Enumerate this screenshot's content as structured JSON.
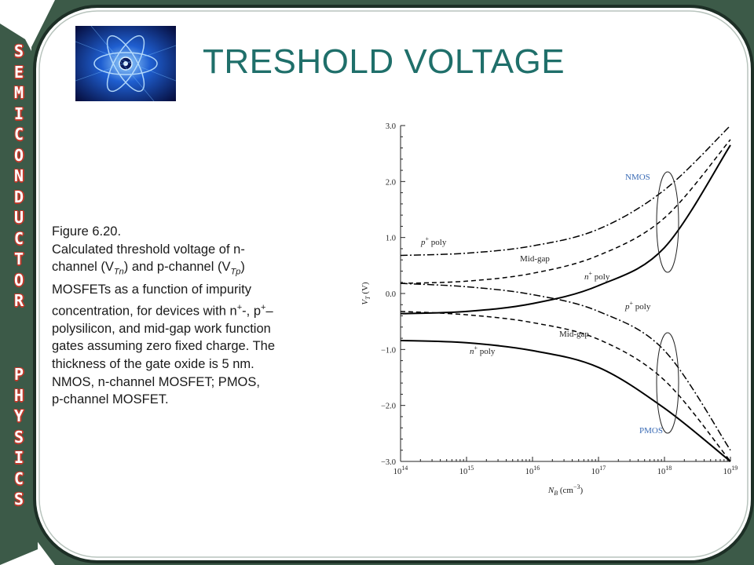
{
  "sidebar": {
    "letters_top": [
      "S",
      "E",
      "M",
      "I",
      "C",
      "O",
      "N",
      "D",
      "U",
      "C",
      "T",
      "O",
      "R"
    ],
    "letters_bottom": [
      "P",
      "H",
      "Y",
      "S",
      "I",
      "C",
      "S"
    ]
  },
  "slide": {
    "title": "TRESHOLD VOLTAGE",
    "logo_icon": "atom-logo-icon"
  },
  "caption": {
    "heading": "Figure 6.20.",
    "lines": [
      "Calculated threshold voltage of n-",
      "channel (V",
      "Tn",
      ") and p-channel (V",
      "Tp",
      ")",
      "MOSFETs as a function of impurity",
      "concentration, for devices with n",
      "+",
      "-, p",
      "+",
      "–",
      "polysilicon, and mid-gap work function",
      "gates assuming zero fixed charge. The",
      "thickness of the gate oxide is 5 nm.",
      "NMOS, n-channel MOSFET; PMOS,",
      "p-channel MOSFET."
    ]
  },
  "colors": {
    "title": "#1f6f6a",
    "frame_dark": "#2a4a3a",
    "sidebar_green": "#3c5a48",
    "sidebar_letter_outline": "#c0392b",
    "group_label": "#3a6bb5"
  },
  "chart_data": {
    "type": "line",
    "xscale": "log",
    "xlim": [
      100000000000000.0,
      1e+19
    ],
    "ylim": [
      -3.0,
      3.0
    ],
    "xticks": [
      "10^14",
      "10^15",
      "10^16",
      "10^17",
      "10^18",
      "10^19"
    ],
    "yticks": [
      "3.0",
      "2.0",
      "1.0",
      "0.0",
      "−1.0",
      "−2.0",
      "−3.0"
    ],
    "xlabel": "N_B (cm^-3)",
    "ylabel": "V_T (V)",
    "group_labels": [
      "NMOS",
      "PMOS"
    ],
    "series": [
      {
        "name": "p+ poly",
        "group": "NMOS",
        "style": "dashdot",
        "x": [
          100000000000000.0,
          1000000000000000.0,
          1e+16,
          1e+17,
          1e+18,
          1e+19
        ],
        "y": [
          0.68,
          0.72,
          0.85,
          1.15,
          1.85,
          3.0
        ]
      },
      {
        "name": "Mid-gap",
        "group": "NMOS",
        "style": "dashed",
        "x": [
          100000000000000.0,
          1000000000000000.0,
          1e+16,
          1e+17,
          1e+18,
          1e+19
        ],
        "y": [
          0.18,
          0.22,
          0.36,
          0.68,
          1.35,
          2.75
        ]
      },
      {
        "name": "n+ poly",
        "group": "NMOS",
        "style": "solid",
        "x": [
          100000000000000.0,
          1000000000000000.0,
          1e+16,
          1e+17,
          1e+18,
          1e+19
        ],
        "y": [
          -0.36,
          -0.32,
          -0.18,
          0.14,
          0.82,
          2.65
        ]
      },
      {
        "name": "p+ poly",
        "group": "PMOS",
        "style": "dashdot",
        "x": [
          100000000000000.0,
          1000000000000000.0,
          1e+16,
          1e+17,
          1e+18,
          1e+19
        ],
        "y": [
          0.18,
          0.12,
          -0.02,
          -0.32,
          -1.02,
          -2.8
        ]
      },
      {
        "name": "Mid-gap",
        "group": "PMOS",
        "style": "dashed",
        "x": [
          100000000000000.0,
          1000000000000000.0,
          1e+16,
          1e+17,
          1e+18,
          1e+19
        ],
        "y": [
          -0.32,
          -0.38,
          -0.52,
          -0.82,
          -1.55,
          -3.0
        ]
      },
      {
        "name": "n+ poly",
        "group": "PMOS",
        "style": "solid",
        "x": [
          100000000000000.0,
          1000000000000000.0,
          1e+16,
          1e+17,
          1e+18,
          1e+19
        ],
        "y": [
          -0.84,
          -0.88,
          -1.02,
          -1.32,
          -2.05,
          -3.0
        ]
      }
    ]
  }
}
